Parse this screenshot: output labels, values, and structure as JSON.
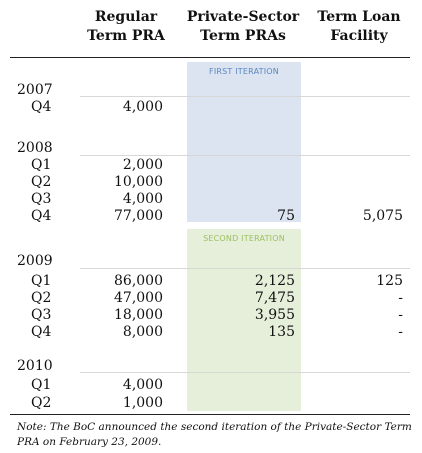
{
  "columns": {
    "regular": [
      "Regular",
      "Term PRA"
    ],
    "private": [
      "Private-Sector",
      "Term PRAs"
    ],
    "tlf": [
      "Term Loan",
      "Facility"
    ]
  },
  "panels": {
    "first": "FIRST ITERATION",
    "second": "SECOND ITERATION"
  },
  "colors": {
    "first_panel_bg": "#dbe4f0",
    "second_panel_bg": "#e6efda",
    "first_panel_title": "#5a86c2",
    "second_panel_title": "#9dbf62"
  },
  "rows": [
    {
      "year": "2007"
    },
    {
      "q": "Q4",
      "regular": "4,000",
      "private": "",
      "tlf": ""
    },
    {
      "year": "2008"
    },
    {
      "q": "Q1",
      "regular": "2,000",
      "private": "",
      "tlf": ""
    },
    {
      "q": "Q2",
      "regular": "10,000",
      "private": "",
      "tlf": ""
    },
    {
      "q": "Q3",
      "regular": "4,000",
      "private": "",
      "tlf": ""
    },
    {
      "q": "Q4",
      "regular": "77,000",
      "private": "75",
      "tlf": "5,075"
    },
    {
      "year": "2009"
    },
    {
      "q": "Q1",
      "regular": "86,000",
      "private": "2,125",
      "tlf": "125"
    },
    {
      "q": "Q2",
      "regular": "47,000",
      "private": "7,475",
      "tlf": "-"
    },
    {
      "q": "Q3",
      "regular": "18,000",
      "private": "3,955",
      "tlf": "-"
    },
    {
      "q": "Q4",
      "regular": "8,000",
      "private": "135",
      "tlf": "-"
    },
    {
      "year": "2010"
    },
    {
      "q": "Q1",
      "regular": "4,000",
      "private": "",
      "tlf": ""
    },
    {
      "q": "Q2",
      "regular": "1,000",
      "private": "",
      "tlf": ""
    }
  ],
  "note": "Note: The BoC announced the second iteration of the Private-Sector Term PRA on February 23, 2009."
}
